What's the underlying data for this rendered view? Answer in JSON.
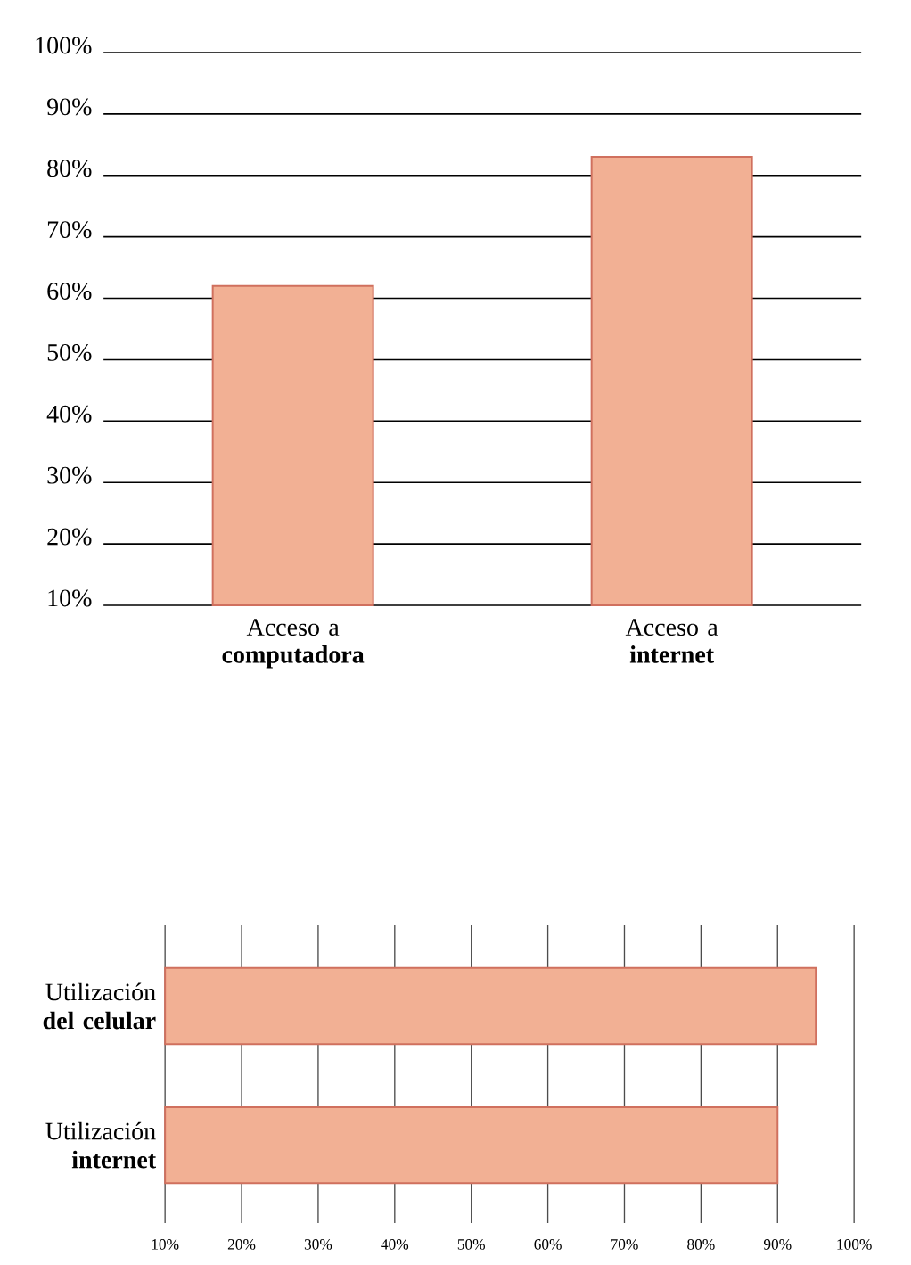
{
  "chart_data": [
    {
      "type": "bar",
      "categories": [
        "Acceso a **computadora**",
        "Acceso a **internet**"
      ],
      "values": [
        62,
        83
      ],
      "color": "#f2b094",
      "ylim": [
        10,
        100
      ],
      "yticks": [
        {
          "value": 10,
          "label": "10%"
        },
        {
          "value": 20,
          "label": "20%"
        },
        {
          "value": 30,
          "label": "30%"
        },
        {
          "value": 40,
          "label": "40%"
        },
        {
          "value": 50,
          "label": "50%"
        },
        {
          "value": 60,
          "label": "60%"
        },
        {
          "value": 70,
          "label": "70%"
        },
        {
          "value": 80,
          "label": "80%"
        },
        {
          "value": 90,
          "label": "90%"
        },
        {
          "value": 100,
          "label": "100%"
        }
      ],
      "grid": "y"
    },
    {
      "type": "bar",
      "orientation": "horizontal",
      "categories": [
        "Utilización **del celular**",
        "Utilización **internet**"
      ],
      "values": [
        95,
        90
      ],
      "color": "#f2b094",
      "xlim": [
        10,
        100
      ],
      "xticks": [
        {
          "value": 10,
          "label": "10%"
        },
        {
          "value": 20,
          "label": "20%"
        },
        {
          "value": 30,
          "label": "30%"
        },
        {
          "value": 40,
          "label": "40%"
        },
        {
          "value": 50,
          "label": "50%"
        },
        {
          "value": 60,
          "label": "60%"
        },
        {
          "value": 70,
          "label": "70%"
        },
        {
          "value": 80,
          "label": "80%"
        },
        {
          "value": 90,
          "label": "90%"
        },
        {
          "value": 100,
          "label": "100%"
        }
      ],
      "grid": "x"
    }
  ]
}
